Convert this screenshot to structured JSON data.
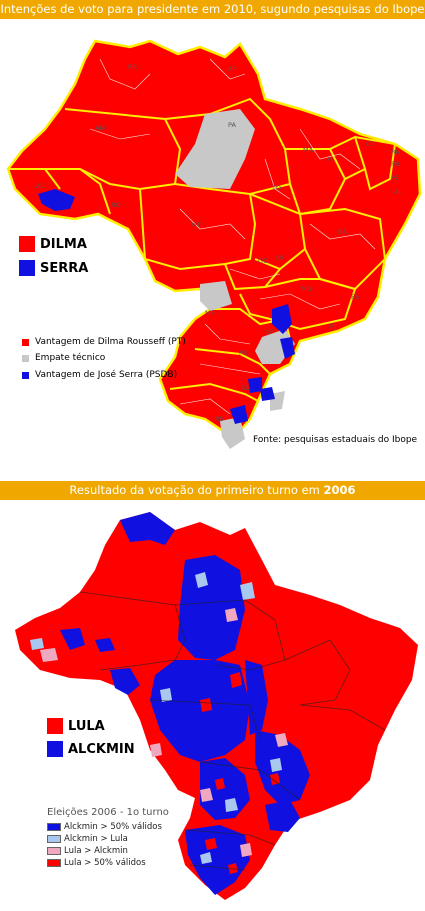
{
  "top_banner": "Intenções de voto para presidente em 2010, sugundo pesquisas do Ibope",
  "bottom_banner_prefix": "Resultado da votação do primeiro turno em ",
  "bottom_banner_year": "2006",
  "colors": {
    "banner": "#f0a800",
    "red": "#ff0000",
    "blue": "#1010e0",
    "gray": "#c8c8c8",
    "light_blue": "#a8c8f0",
    "pink": "#f0a8c0",
    "yellow_border": "#ffee00"
  },
  "map_2010": {
    "candidates": [
      {
        "label": "DILMA",
        "color": "#ff0000"
      },
      {
        "label": "SERRA",
        "color": "#1010e0"
      }
    ],
    "legend": [
      {
        "label": "Vantagem de Dilma Rousseff (PT)",
        "color": "#ff0000"
      },
      {
        "label": "Empate técnico",
        "color": "#c8c8c8"
      },
      {
        "label": "Vantagem de José Serra (PSDB)",
        "color": "#1010e0"
      }
    ],
    "source": "Fonte: pesquisas estaduais do Ibope",
    "states": [
      "RR",
      "AP",
      "AM",
      "PA",
      "MA",
      "CE",
      "RN",
      "PB",
      "PI",
      "PE",
      "AL",
      "AC",
      "TO",
      "RO",
      "MT",
      "BA",
      "GO",
      "DF",
      "MG",
      "ES",
      "MS",
      "SP",
      "RJ",
      "PR",
      "SC",
      "RS"
    ]
  },
  "map_2006": {
    "candidates": [
      {
        "label": "LULA",
        "color": "#ff0000"
      },
      {
        "label": "ALCKMIN",
        "color": "#1010e0"
      }
    ],
    "legend_title": "Eleições 2006 - 1o turno",
    "legend": [
      {
        "label": "Alckmin > 50% válidos",
        "color": "#1010e0"
      },
      {
        "label": "Alckmin > Lula",
        "color": "#a8c8f0"
      },
      {
        "label": "Lula > Alckmin",
        "color": "#f0a8c0"
      },
      {
        "label": "Lula > 50% válidos",
        "color": "#ff0000"
      }
    ]
  }
}
